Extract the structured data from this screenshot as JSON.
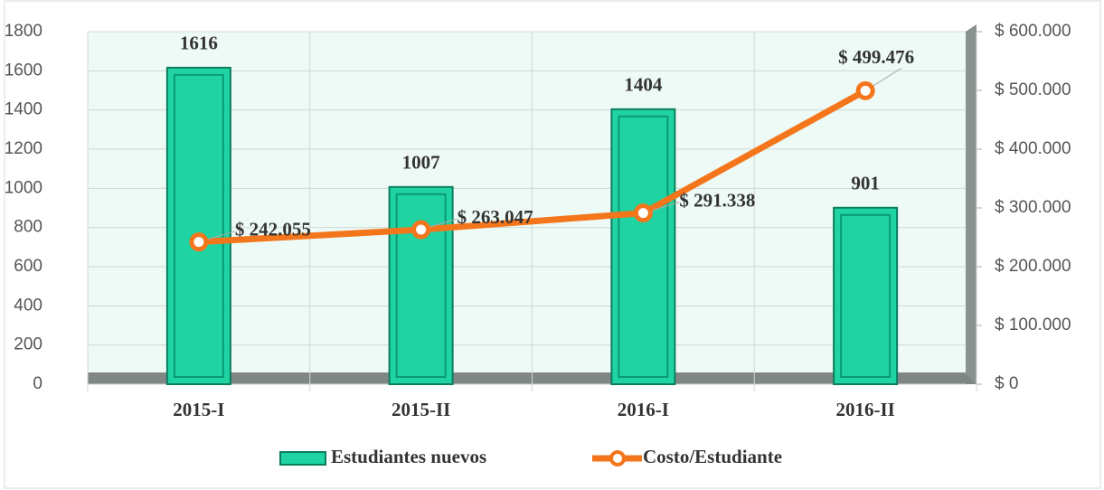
{
  "chart_data": {
    "type": "bar",
    "categories": [
      "2015-I",
      "2015-II",
      "2016-I",
      "2016-II"
    ],
    "series": [
      {
        "name": "Estudiantes nuevos",
        "type": "bar",
        "color": "#1fd3a2",
        "values": [
          1616,
          1007,
          1404,
          901
        ]
      },
      {
        "name": "Costo/Estudiante",
        "type": "line",
        "axis": "y2",
        "color": "#f4761c",
        "values": [
          242055,
          263047,
          291338,
          499476
        ],
        "value_labels": [
          "$ 242.055",
          "$ 263.047",
          "$ 291.338",
          "$ 499.476"
        ]
      }
    ],
    "ylim": [
      0,
      1800
    ],
    "yticks": [
      0,
      200,
      400,
      600,
      800,
      1000,
      1200,
      1400,
      1600,
      1800
    ],
    "y2lim": [
      0,
      600000
    ],
    "y2ticks": [
      {
        "value": 0,
        "label": "$ 0"
      },
      {
        "value": 100000,
        "label": "$ 100.000"
      },
      {
        "value": 200000,
        "label": "$ 200.000"
      },
      {
        "value": 300000,
        "label": "$ 300.000"
      },
      {
        "value": 400000,
        "label": "$ 400.000"
      },
      {
        "value": 500000,
        "label": "$ 500.000"
      },
      {
        "value": 600000,
        "label": "$ 600.000"
      }
    ],
    "grid": true,
    "legend": "bottom"
  }
}
